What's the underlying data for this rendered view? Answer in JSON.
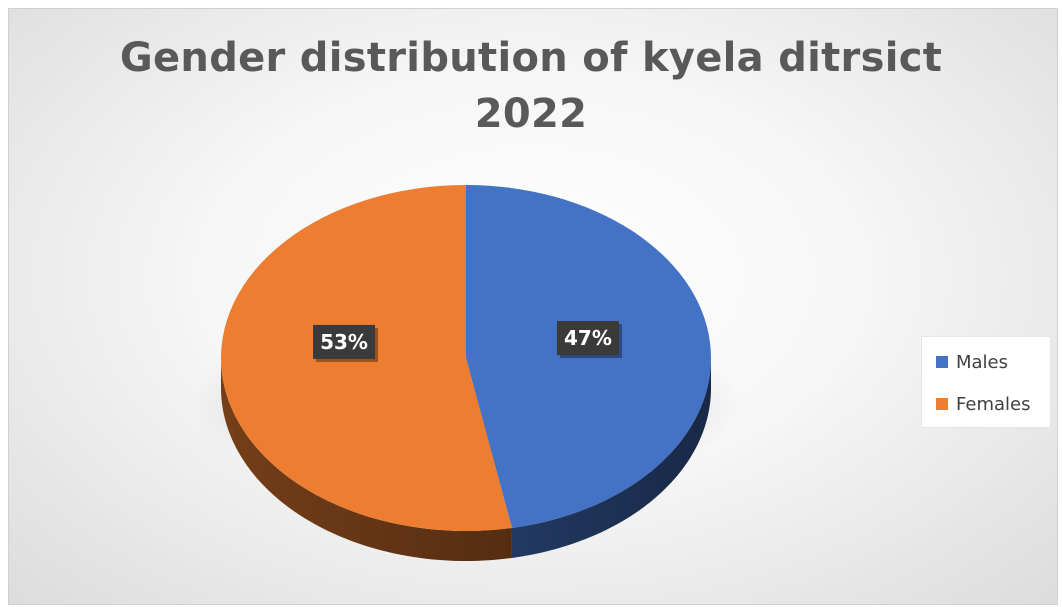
{
  "chart_data": {
    "type": "pie",
    "title": "Gender distribution of kyela ditrsict 2022",
    "title_lines": [
      "Gender distribution of kyela ditrsict",
      "2022"
    ],
    "slices": [
      {
        "name": "Males",
        "value": 47,
        "label": "47%",
        "color": "#4472C4"
      },
      {
        "name": "Females",
        "value": 53,
        "label": "53%",
        "color": "#ED7D31"
      }
    ],
    "legend_position": "right",
    "style": "3d"
  }
}
